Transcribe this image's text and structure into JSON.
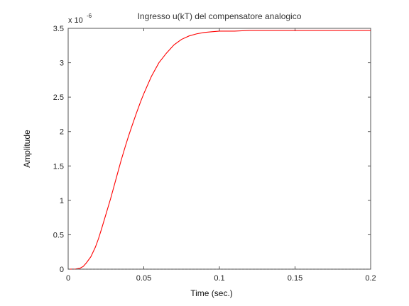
{
  "chart_data": {
    "type": "line",
    "title": "Ingresso u(kT) del compensatore analogico",
    "xlabel": "Time (sec.)",
    "ylabel": "Amplitude",
    "xlim": [
      0,
      0.2
    ],
    "ylim": [
      0,
      3.5
    ],
    "y_exponent_label": "x 10",
    "y_exponent_power": "-6",
    "xticks": [
      "0",
      "0.05",
      "0.1",
      "0.15",
      "0.2"
    ],
    "yticks": [
      "0",
      "0.5",
      "1",
      "1.5",
      "2",
      "2.5",
      "3",
      "3.5"
    ],
    "grid": false,
    "legend": "none",
    "colors": {
      "response": "#ff0000",
      "zero_line": "#444444",
      "axes": "#555555"
    },
    "series": [
      {
        "style": "solid",
        "x": [
          0,
          0.005,
          0.008,
          0.01,
          0.012,
          0.015,
          0.018,
          0.02,
          0.022,
          0.025,
          0.028,
          0.03,
          0.032,
          0.035,
          0.038,
          0.04,
          0.042,
          0.045,
          0.048,
          0.05,
          0.055,
          0.06,
          0.065,
          0.07,
          0.075,
          0.08,
          0.085,
          0.09,
          0.095,
          0.1,
          0.11,
          0.12,
          0.13,
          0.15,
          0.17,
          0.2
        ],
        "y": [
          0,
          0.002,
          0.015,
          0.04,
          0.09,
          0.18,
          0.32,
          0.44,
          0.58,
          0.8,
          1.02,
          1.18,
          1.34,
          1.58,
          1.8,
          1.94,
          2.07,
          2.26,
          2.44,
          2.55,
          2.8,
          3.0,
          3.14,
          3.26,
          3.34,
          3.39,
          3.42,
          3.44,
          3.45,
          3.46,
          3.46,
          3.47,
          3.47,
          3.47,
          3.47,
          3.47
        ]
      },
      {
        "style": "dashed",
        "x": [
          0,
          0.2
        ],
        "y": [
          0,
          0
        ]
      }
    ]
  }
}
